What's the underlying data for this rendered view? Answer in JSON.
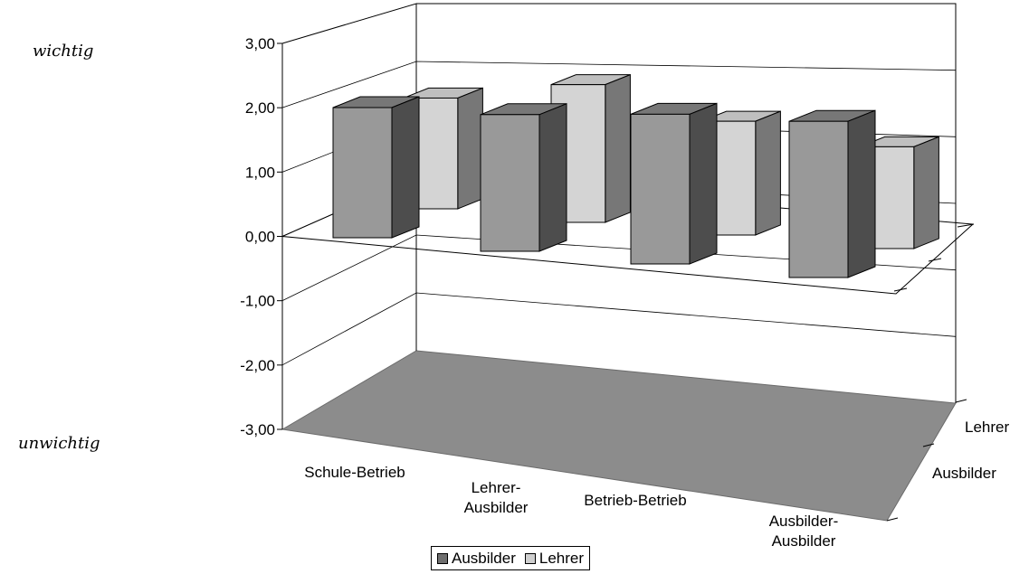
{
  "annotations": {
    "top": "wichtig",
    "bottom": "unwichtig"
  },
  "chart_data": {
    "type": "bar",
    "three_d": true,
    "categories": [
      "Schule-Betrieb",
      "Lehrer-\nAusbilder",
      "Betrieb-Betrieb",
      "Ausbilder-\nAusbilder"
    ],
    "series": [
      {
        "name": "Ausbilder",
        "values": [
          2.0,
          2.1,
          2.3,
          2.4
        ],
        "color": "#999999"
      },
      {
        "name": "Lehrer",
        "values": [
          1.85,
          2.3,
          1.9,
          1.7
        ],
        "color": "#d4d4d4"
      }
    ],
    "depth_labels": [
      "Ausbilder",
      "Lehrer"
    ],
    "ylim": [
      -3,
      3
    ],
    "yticks": [
      "3,00",
      "2,00",
      "1,00",
      "0,00",
      "-1,00",
      "-2,00",
      "-3,00"
    ],
    "grid": true,
    "legend": "bottom"
  }
}
